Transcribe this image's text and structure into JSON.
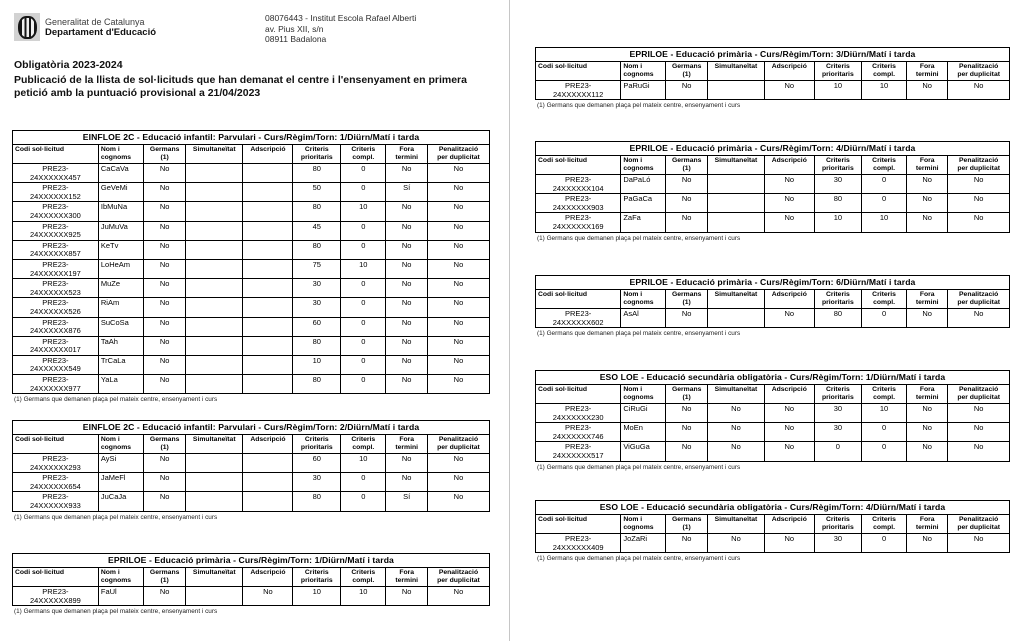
{
  "header": {
    "org_line1": "Generalitat de Catalunya",
    "org_line2": "Departament d'Educació",
    "center_code_name": "08076443 - Institut Escola Rafael Alberti",
    "center_address": "av. Pius XII, s/n",
    "center_city": "08911 Badalona",
    "doc_title": "Obligatòria 2023-2024",
    "doc_subtitle": "Publicació de la llista de sol·licituds que han demanat el centre i l'ensenyament en primera petició amb la puntuació provisional a 21/04/2023"
  },
  "logo_icon": "senyera-shield-icon",
  "table_columns": [
    {
      "label": "Codi sol·licitud",
      "align": "left"
    },
    {
      "label": "Nom i\ncognoms",
      "align": "left"
    },
    {
      "label": "Germans\n(1)",
      "align": "center"
    },
    {
      "label": "Simultaneïtat",
      "align": "center"
    },
    {
      "label": "Adscripció",
      "align": "center"
    },
    {
      "label": "Criteris\nprioritaris",
      "align": "center"
    },
    {
      "label": "Criteris\ncompl.",
      "align": "center"
    },
    {
      "label": "Fora\ntermini",
      "align": "center"
    },
    {
      "label": "Penalització\nper duplicitat",
      "align": "center"
    }
  ],
  "footnote": "(1) Germans que demanen plaça pel mateix centre, ensenyament i curs",
  "tables": [
    {
      "title": "EINFLOE 2C - Educació infantil: Parvulari   -  Curs/Règim/Torn:  1/Diürn/Matí i tarda",
      "rows": [
        [
          "PRE23-",
          "24XXXXXX457",
          "CaCaVa",
          "No",
          "",
          "",
          "80",
          "0",
          "No",
          "No"
        ],
        [
          "PRE23-",
          "24XXXXXX152",
          "GeVeMi",
          "No",
          "",
          "",
          "50",
          "0",
          "Sí",
          "No"
        ],
        [
          "PRE23-",
          "24XXXXXX300",
          "IbMuNa",
          "No",
          "",
          "",
          "80",
          "10",
          "No",
          "No"
        ],
        [
          "PRE23-",
          "24XXXXXX925",
          "JuMuVa",
          "No",
          "",
          "",
          "45",
          "0",
          "No",
          "No"
        ],
        [
          "PRE23-",
          "24XXXXXX857",
          "KeTv",
          "No",
          "",
          "",
          "80",
          "0",
          "No",
          "No"
        ],
        [
          "PRE23-",
          "24XXXXXX197",
          "LoHeAm",
          "No",
          "",
          "",
          "75",
          "10",
          "No",
          "No"
        ],
        [
          "PRE23-",
          "24XXXXXX523",
          "MuZe",
          "No",
          "",
          "",
          "30",
          "0",
          "No",
          "No"
        ],
        [
          "PRE23-",
          "24XXXXXX526",
          "RiAm",
          "No",
          "",
          "",
          "30",
          "0",
          "No",
          "No"
        ],
        [
          "PRE23-",
          "24XXXXXX876",
          "SuCoSa",
          "No",
          "",
          "",
          "60",
          "0",
          "No",
          "No"
        ],
        [
          "PRE23-",
          "24XXXXXX017",
          "TaAh",
          "No",
          "",
          "",
          "80",
          "0",
          "No",
          "No"
        ],
        [
          "PRE23-",
          "24XXXXXX549",
          "TrCaLa",
          "No",
          "",
          "",
          "10",
          "0",
          "No",
          "No"
        ],
        [
          "PRE23-",
          "24XXXXXX977",
          "YaLa",
          "No",
          "",
          "",
          "80",
          "0",
          "No",
          "No"
        ]
      ]
    },
    {
      "title": "EINFLOE 2C - Educació infantil: Parvulari   -  Curs/Règim/Torn:  2/Diürn/Matí i tarda",
      "rows": [
        [
          "PRE23-",
          "24XXXXXX293",
          "AySi",
          "No",
          "",
          "",
          "60",
          "10",
          "No",
          "No"
        ],
        [
          "PRE23-",
          "24XXXXXX654",
          "JaMeFl",
          "No",
          "",
          "",
          "30",
          "0",
          "No",
          "No"
        ],
        [
          "PRE23-",
          "24XXXXXX933",
          "JuCaJa",
          "No",
          "",
          "",
          "80",
          "0",
          "Sí",
          "No"
        ]
      ]
    },
    {
      "title": "EPRILOE - Educació primària   -  Curs/Règim/Torn:  1/Diürn/Matí i tarda",
      "rows": [
        [
          "PRE23-",
          "24XXXXXX899",
          "FaUl",
          "No",
          "",
          "No",
          "10",
          "10",
          "No",
          "No"
        ]
      ]
    },
    {
      "title": "EPRILOE - Educació primària   -  Curs/Règim/Torn:  3/Diürn/Matí i tarda",
      "rows": [
        [
          "PRE23-",
          "24XXXXXX112",
          "PaRuGi",
          "No",
          "",
          "No",
          "10",
          "10",
          "No",
          "No"
        ]
      ]
    },
    {
      "title": "EPRILOE - Educació primària   -  Curs/Règim/Torn:  4/Diürn/Matí i tarda",
      "rows": [
        [
          "PRE23-",
          "24XXXXXX104",
          "DaPaLó",
          "No",
          "",
          "No",
          "30",
          "0",
          "No",
          "No"
        ],
        [
          "PRE23-",
          "24XXXXXX903",
          "PaGaCa",
          "No",
          "",
          "No",
          "80",
          "0",
          "No",
          "No"
        ],
        [
          "PRE23-",
          "24XXXXXX169",
          "ZaFa",
          "No",
          "",
          "No",
          "10",
          "10",
          "No",
          "No"
        ]
      ]
    },
    {
      "title": "EPRILOE - Educació primària   -  Curs/Règim/Torn:  6/Diürn/Matí i tarda",
      "rows": [
        [
          "PRE23-",
          "24XXXXXX602",
          "AsAl",
          "No",
          "",
          "No",
          "80",
          "0",
          "No",
          "No"
        ]
      ]
    },
    {
      "title": "ESO LOE - Educació secundària obligatòria   -  Curs/Règim/Torn:  1/Diürn/Matí i tarda",
      "rows": [
        [
          "PRE23-",
          "24XXXXXX230",
          "CiRuGi",
          "No",
          "No",
          "No",
          "30",
          "10",
          "No",
          "No"
        ],
        [
          "PRE23-",
          "24XXXXXX746",
          "MoEn",
          "No",
          "No",
          "No",
          "30",
          "0",
          "No",
          "No"
        ],
        [
          "PRE23-",
          "24XXXXXX517",
          "ViGuGa",
          "No",
          "No",
          "No",
          "0",
          "0",
          "No",
          "No"
        ]
      ]
    },
    {
      "title": "ESO LOE - Educació secundària obligatòria   -  Curs/Règim/Torn:  4/Diürn/Matí i tarda",
      "rows": [
        [
          "PRE23-",
          "24XXXXXX409",
          "JoZaRi",
          "No",
          "No",
          "No",
          "30",
          "0",
          "No",
          "No"
        ]
      ]
    }
  ]
}
